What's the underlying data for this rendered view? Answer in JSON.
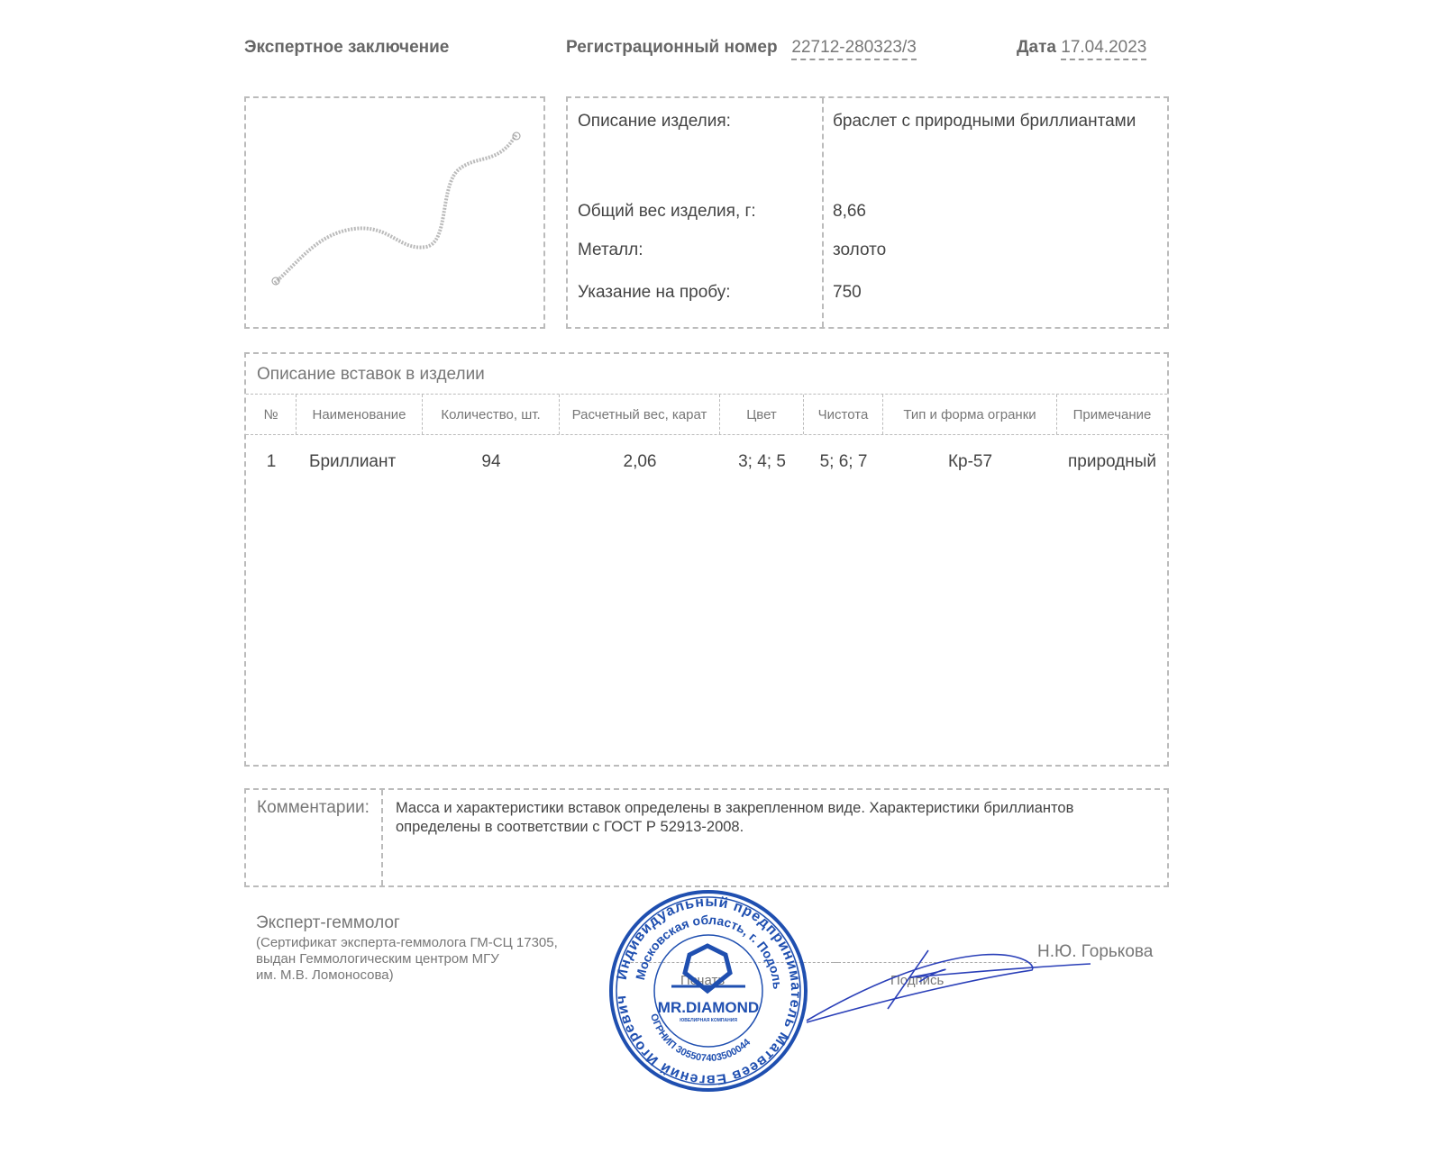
{
  "header": {
    "title": "Экспертное заключение",
    "reg_label": "Регистрационный номер",
    "reg_value": "22712-280323/3",
    "date_label": "Дата",
    "date_value": "17.04.2023"
  },
  "item": {
    "rows": [
      {
        "label": "Описание изделия:",
        "value": "браслет с природными бриллиантами"
      },
      {
        "label": "Общий вес изделия, г:",
        "value": "8,66"
      },
      {
        "label": "Металл:",
        "value": "золото"
      },
      {
        "label": "Указание на пробу:",
        "value": "750"
      }
    ]
  },
  "inserts": {
    "title": "Описание вставок в изделии",
    "columns": [
      "№",
      "Наименование",
      "Количество, шт.",
      "Расчетный вес, карат",
      "Цвет",
      "Чистота",
      "Тип и форма огранки",
      "Примечание"
    ],
    "rows": [
      [
        "1",
        "Бриллиант",
        "94",
        "2,06",
        "3; 4; 5",
        "5; 6; 7",
        "Кр-57",
        "природный"
      ]
    ]
  },
  "comments": {
    "label": "Комментарии:",
    "text": "Масса и характеристики вставок определены в закрепленном виде. Характеристики бриллиантов определены в соответствии с ГОСТ Р 52913-2008."
  },
  "expert": {
    "title": "Эксперт-геммолог",
    "lines": [
      "(Сертификат эксперта-геммолога ГМ-СЦ 17305,",
      "выдан Геммологическим центром МГУ",
      "им. М.В. Ломоносова)"
    ],
    "name": "Н.Ю. Горькова",
    "stamp_label": "Печать",
    "signature_label": "Подпись"
  },
  "stamp": {
    "color": "#1f4fb0",
    "outer_text": "Индивидуальный предприниматель Матвеев Евгений Игоревич",
    "inner_text": "Московская область, г. Подольск",
    "ogrnip": "ОГРНИП 305507403500044",
    "brand": "MR.DIAMOND",
    "brand_sub": "ЮВЕЛИРНАЯ КОМПАНИЯ"
  }
}
